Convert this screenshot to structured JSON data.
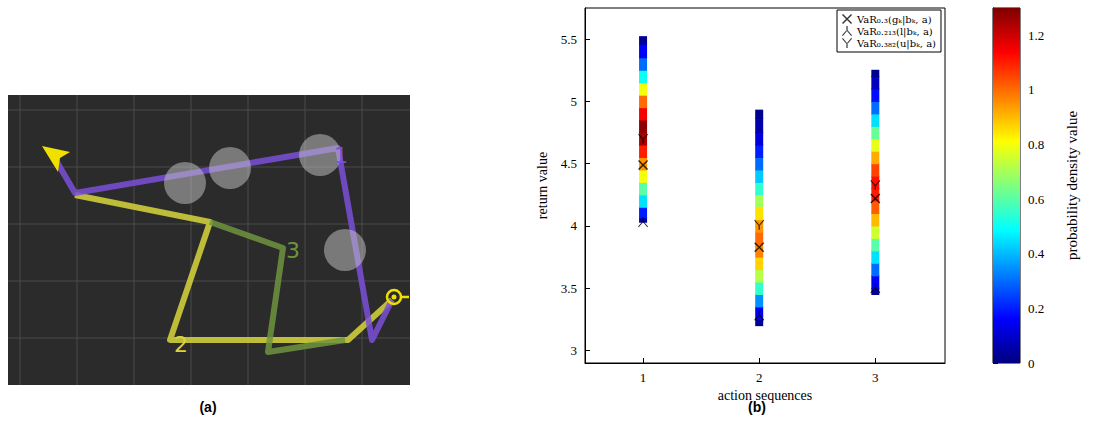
{
  "diagram": {
    "label": "(a)",
    "paths": [
      {
        "label": "1",
        "color": "#7a50d8"
      },
      {
        "label": "2",
        "color": "#d8d63c"
      },
      {
        "label": "3",
        "color": "#6e9440"
      }
    ]
  },
  "chart_data": {
    "type": "density_strip",
    "panel_label": "(b)",
    "x_label": "action sequences",
    "y_label": "return value",
    "x": [
      1,
      2,
      3
    ],
    "xlim": [
      0.5,
      3.6
    ],
    "xticks": [
      1,
      2,
      3
    ],
    "ylim": [
      2.9,
      5.75
    ],
    "yticks": [
      3,
      3.5,
      4,
      4.5,
      5,
      5.5
    ],
    "grid": false,
    "legend": "upper right",
    "strips": [
      {
        "return_values": [
          4.03,
          4.1,
          4.2,
          4.3,
          4.4,
          4.5,
          4.6,
          4.7,
          4.8,
          4.9,
          5.0,
          5.1,
          5.2,
          5.3,
          5.4,
          5.52
        ],
        "density": [
          0.05,
          0.2,
          0.45,
          0.6,
          0.8,
          0.95,
          1.1,
          1.25,
          1.28,
          1.15,
          1.0,
          0.8,
          0.5,
          0.3,
          0.15,
          0.03
        ]
      },
      {
        "return_values": [
          3.2,
          3.3,
          3.4,
          3.5,
          3.6,
          3.7,
          3.8,
          3.9,
          4.0,
          4.1,
          4.2,
          4.3,
          4.4,
          4.5,
          4.6,
          4.7,
          4.8,
          4.93
        ],
        "density": [
          0.03,
          0.15,
          0.35,
          0.55,
          0.72,
          0.87,
          0.97,
          1.0,
          0.95,
          0.85,
          0.7,
          0.55,
          0.42,
          0.3,
          0.2,
          0.12,
          0.06,
          0.02
        ]
      },
      {
        "return_values": [
          3.45,
          3.55,
          3.65,
          3.75,
          3.85,
          3.95,
          4.05,
          4.15,
          4.25,
          4.35,
          4.45,
          4.55,
          4.65,
          4.75,
          4.85,
          4.95,
          5.05,
          5.15,
          5.25
        ],
        "density": [
          0.03,
          0.15,
          0.3,
          0.45,
          0.6,
          0.75,
          0.9,
          1.02,
          1.1,
          1.12,
          1.05,
          0.92,
          0.78,
          0.62,
          0.45,
          0.3,
          0.18,
          0.08,
          0.02
        ]
      }
    ],
    "colorbar": {
      "label": "probability density value",
      "lim": [
        0,
        1.3
      ],
      "ticks": [
        0,
        0.2,
        0.4,
        0.6,
        0.8,
        1,
        1.2
      ]
    },
    "series": [
      {
        "name": "VaR₀.₃(gₖ|bₖ, a)",
        "marker": "x",
        "color": "#000000",
        "values": [
          4.49,
          3.83,
          4.22
        ]
      },
      {
        "name": "VaR₀.₂₁₃(l|bₖ, a)",
        "marker": "inverted_y",
        "color": "#000000",
        "values": [
          4.03,
          3.28,
          3.5
        ]
      },
      {
        "name": "VaR₀.₃₈₂(u|bₖ, a)",
        "marker": "y",
        "color": "#000000",
        "values": [
          4.7,
          4.01,
          4.33
        ]
      }
    ]
  }
}
